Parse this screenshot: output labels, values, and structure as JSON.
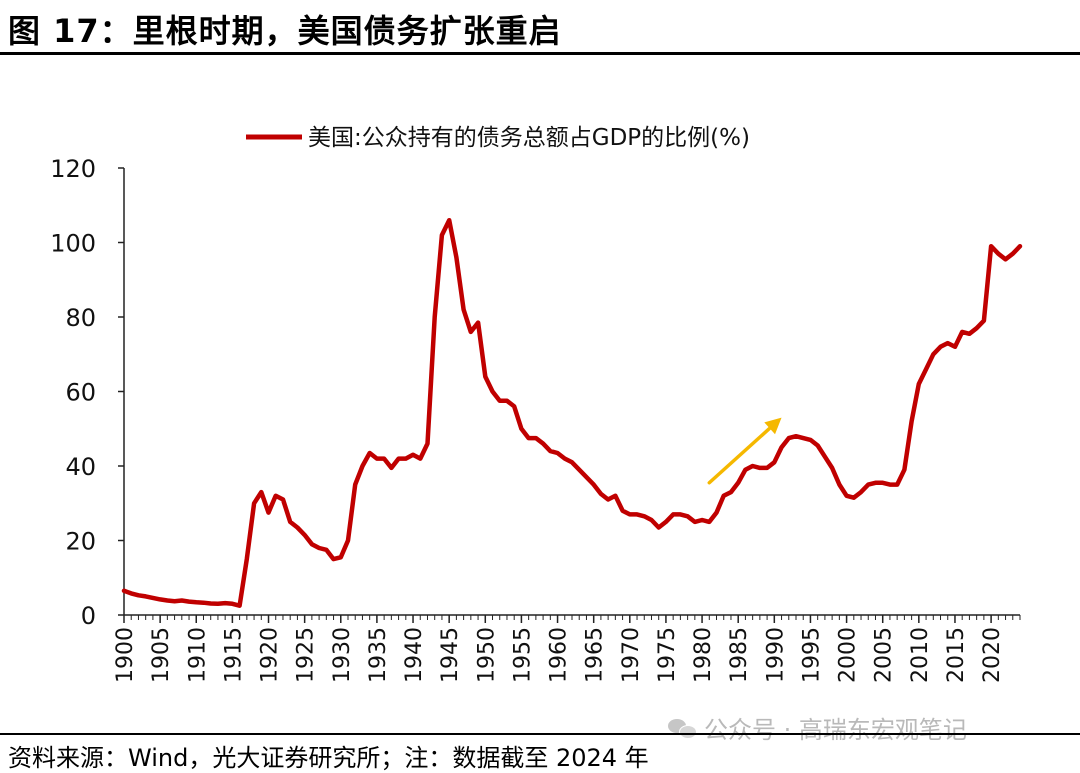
{
  "header": {
    "title": "图 17：里根时期，美国债务扩张重启"
  },
  "footer": {
    "source": "资料来源：Wind，光大证券研究所；注：数据截至 2024 年",
    "watermark": "公众号 · 高瑞东宏观笔记"
  },
  "colors": {
    "series": "#c00000",
    "arrow": "#f5b800"
  },
  "chart_data": {
    "type": "line",
    "title": "",
    "xlabel": "",
    "ylabel": "",
    "xlim": [
      1900,
      2024
    ],
    "ylim": [
      0,
      120
    ],
    "yticks": [
      "0",
      "20",
      "40",
      "60",
      "80",
      "100",
      "120"
    ],
    "xticks": [
      "1900",
      "1905",
      "1910",
      "1915",
      "1920",
      "1925",
      "1930",
      "1935",
      "1940",
      "1945",
      "1950",
      "1955",
      "1960",
      "1965",
      "1970",
      "1975",
      "1980",
      "1985",
      "1990",
      "1995",
      "2000",
      "2005",
      "2010",
      "2015",
      "2020"
    ],
    "grid": false,
    "legend_position": "top",
    "annotation": {
      "type": "arrow",
      "from": [
        1981,
        35.5
      ],
      "to": [
        1991,
        53
      ]
    },
    "series": [
      {
        "name": "美国:公众持有的债务总额占GDP的比例(%)",
        "x": [
          1900,
          1901,
          1902,
          1903,
          1904,
          1905,
          1906,
          1907,
          1908,
          1909,
          1910,
          1911,
          1912,
          1913,
          1914,
          1915,
          1916,
          1917,
          1918,
          1919,
          1920,
          1921,
          1922,
          1923,
          1924,
          1925,
          1926,
          1927,
          1928,
          1929,
          1930,
          1931,
          1932,
          1933,
          1934,
          1935,
          1936,
          1937,
          1938,
          1939,
          1940,
          1941,
          1942,
          1943,
          1944,
          1945,
          1946,
          1947,
          1948,
          1949,
          1950,
          1951,
          1952,
          1953,
          1954,
          1955,
          1956,
          1957,
          1958,
          1959,
          1960,
          1961,
          1962,
          1963,
          1964,
          1965,
          1966,
          1967,
          1968,
          1969,
          1970,
          1971,
          1972,
          1973,
          1974,
          1975,
          1976,
          1977,
          1978,
          1979,
          1980,
          1981,
          1982,
          1983,
          1984,
          1985,
          1986,
          1987,
          1988,
          1989,
          1990,
          1991,
          1992,
          1993,
          1994,
          1995,
          1996,
          1997,
          1998,
          1999,
          2000,
          2001,
          2002,
          2003,
          2004,
          2005,
          2006,
          2007,
          2008,
          2009,
          2010,
          2011,
          2012,
          2013,
          2014,
          2015,
          2016,
          2017,
          2018,
          2019,
          2020,
          2021,
          2022,
          2023,
          2024
        ],
        "values": [
          6.5,
          5.8,
          5.3,
          5.0,
          4.6,
          4.2,
          3.9,
          3.7,
          3.9,
          3.6,
          3.4,
          3.3,
          3.1,
          3.0,
          3.2,
          3.0,
          2.5,
          15,
          30,
          33,
          27.5,
          32,
          31,
          25,
          23.5,
          21.5,
          19,
          18,
          17.5,
          15,
          15.5,
          20,
          35,
          40,
          43.5,
          42,
          42,
          39.5,
          42,
          42,
          43,
          42,
          46,
          80,
          102,
          106,
          96,
          82,
          76,
          78.5,
          64,
          60,
          57.5,
          57.5,
          56,
          50,
          47.5,
          47.5,
          46,
          44,
          43.5,
          42,
          41,
          39,
          37,
          35,
          32.5,
          31,
          32,
          28,
          27,
          27,
          26.5,
          25.5,
          23.5,
          25,
          27,
          27,
          26.5,
          25,
          25.5,
          25,
          27.5,
          32,
          33,
          35.5,
          39,
          40,
          39.5,
          39.5,
          41,
          45,
          47.5,
          48,
          47.5,
          47,
          45.5,
          42.5,
          39.5,
          35,
          32,
          31.5,
          33,
          35,
          35.5,
          35.5,
          35,
          35,
          39,
          52,
          62,
          66,
          70,
          72,
          73,
          72,
          76,
          75.5,
          77,
          79,
          99,
          97,
          95.5,
          97,
          99
        ]
      }
    ]
  }
}
